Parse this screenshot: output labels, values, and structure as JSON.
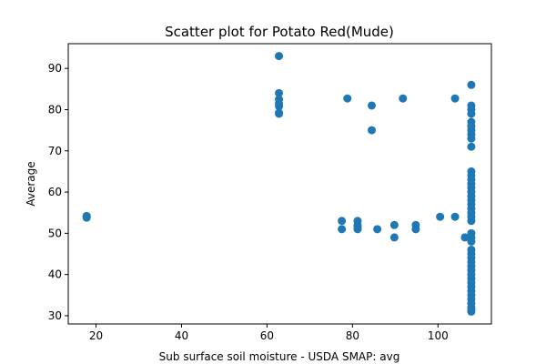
{
  "chart_data": {
    "type": "scatter",
    "title": "Scatter plot for Potato Red(Mude)",
    "xlabel": "Sub surface soil moisture - USDA SMAP: avg",
    "ylabel": "Average",
    "xlim": [
      13.5,
      112.5
    ],
    "ylim": [
      28,
      96
    ],
    "xticks": [
      20,
      40,
      60,
      80,
      100
    ],
    "yticks": [
      30,
      40,
      50,
      60,
      70,
      80,
      90
    ],
    "grid": false,
    "color": "#1f77b4",
    "series": [
      {
        "points": [
          [
            17.8,
            53.8
          ],
          [
            17.8,
            54.0
          ],
          [
            17.8,
            54.2
          ],
          [
            62.8,
            93.0
          ],
          [
            62.8,
            84.0
          ],
          [
            62.8,
            82.5
          ],
          [
            62.8,
            81.5
          ],
          [
            62.8,
            80.8
          ],
          [
            62.8,
            79.2
          ],
          [
            62.8,
            79.0
          ],
          [
            77.5,
            53.0
          ],
          [
            77.5,
            51.0
          ],
          [
            78.8,
            82.7
          ],
          [
            81.2,
            53.0
          ],
          [
            81.2,
            52.0
          ],
          [
            81.2,
            51.5
          ],
          [
            81.2,
            51.0
          ],
          [
            84.5,
            81.0
          ],
          [
            84.5,
            75.0
          ],
          [
            85.8,
            51.0
          ],
          [
            89.8,
            52.0
          ],
          [
            89.8,
            49.0
          ],
          [
            91.8,
            82.7
          ],
          [
            94.8,
            52.0
          ],
          [
            94.8,
            51.0
          ],
          [
            100.5,
            54.0
          ],
          [
            104.0,
            82.7
          ],
          [
            104.0,
            54.0
          ],
          [
            106.3,
            49.0
          ],
          [
            107.8,
            86.0
          ],
          [
            107.8,
            81.0
          ],
          [
            107.8,
            80.0
          ],
          [
            107.8,
            79.0
          ],
          [
            107.8,
            77.0
          ],
          [
            107.8,
            76.0
          ],
          [
            107.8,
            75.0
          ],
          [
            107.8,
            74.0
          ],
          [
            107.8,
            73.0
          ],
          [
            107.8,
            71.0
          ],
          [
            107.8,
            65.0
          ],
          [
            107.8,
            64.0
          ],
          [
            107.8,
            63.0
          ],
          [
            107.8,
            62.0
          ],
          [
            107.8,
            61.0
          ],
          [
            107.8,
            60.0
          ],
          [
            107.8,
            59.0
          ],
          [
            107.8,
            58.0
          ],
          [
            107.8,
            57.0
          ],
          [
            107.8,
            56.0
          ],
          [
            107.8,
            55.0
          ],
          [
            107.8,
            54.0
          ],
          [
            107.8,
            53.0
          ],
          [
            107.8,
            50.0
          ],
          [
            107.8,
            49.0
          ],
          [
            107.8,
            48.0
          ],
          [
            107.8,
            46.0
          ],
          [
            107.8,
            45.0
          ],
          [
            107.8,
            44.0
          ],
          [
            107.8,
            43.0
          ],
          [
            107.8,
            42.0
          ],
          [
            107.8,
            41.0
          ],
          [
            107.8,
            40.0
          ],
          [
            107.8,
            39.0
          ],
          [
            107.8,
            38.0
          ],
          [
            107.8,
            37.0
          ],
          [
            107.8,
            36.0
          ],
          [
            107.8,
            35.0
          ],
          [
            107.8,
            34.0
          ],
          [
            107.8,
            33.0
          ],
          [
            107.8,
            32.0
          ],
          [
            107.8,
            31.5
          ],
          [
            107.8,
            31.0
          ]
        ]
      }
    ]
  }
}
